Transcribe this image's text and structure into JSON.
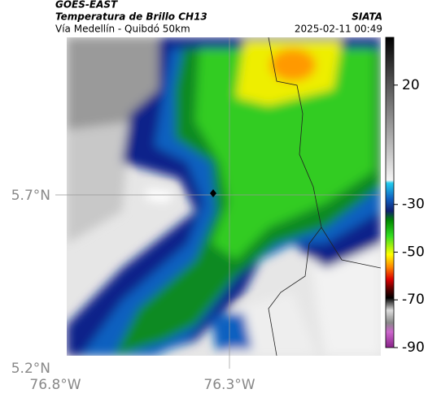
{
  "header": {
    "source": "GOES-EAST",
    "title": "Temperatura de Brillo CH13",
    "subtitle": "Vía Medellín - Quibdó 50km",
    "agency": "SIATA",
    "datetime": "2025-02-11 00:49"
  },
  "axes": {
    "y_labels": [
      "5.7°N",
      "5.2°N"
    ],
    "x_labels": [
      "76.8°W",
      "76.3°W"
    ]
  },
  "colorbar": {
    "lim": [
      -90,
      40
    ],
    "ticks": [
      20,
      -30,
      -50,
      -70,
      -90
    ]
  }
}
